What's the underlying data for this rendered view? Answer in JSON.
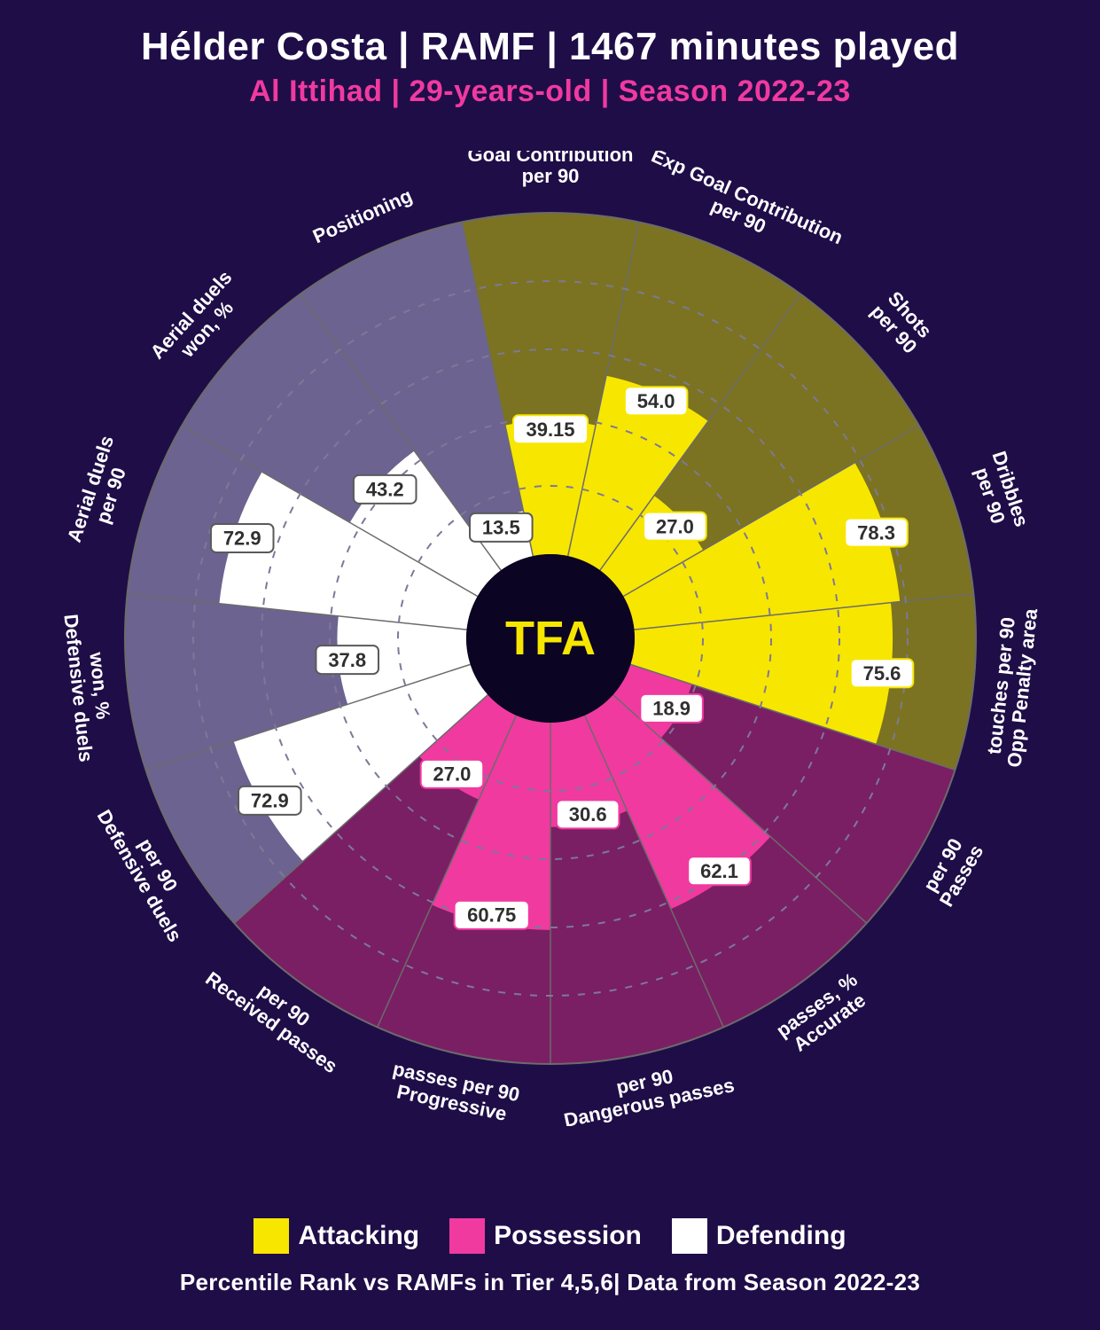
{
  "header": {
    "title": "Hélder Costa | RAMF | 1467 minutes played",
    "subtitle": "Al Ittihad | 29-years-old | Season 2022-23"
  },
  "footnote": "Percentile Rank vs RAMFs in Tier 4,5,6| Data from Season 2022-23",
  "center_logo": "TFA",
  "chart": {
    "type": "polar-bar",
    "background_color": "#1f0d48",
    "outer_radius": 480,
    "inner_radius": 95,
    "max_value": 100,
    "grid_rings": [
      20,
      40,
      60,
      80
    ],
    "grid_color": "#7d7997",
    "grid_dash": "8 10",
    "outer_ring_stroke": "#6b6b6b",
    "spoke_color": "#6b6b6b",
    "spoke_dash": "",
    "value_label_bg": "#ffffff",
    "value_label_font": 22,
    "value_label_radius": 6,
    "category_label_color": "#ffffff",
    "category_label_font": 22,
    "category_label_weight": 700,
    "groups": {
      "attacking": {
        "bar_color": "#f7e600",
        "bg_color": "#7b7321",
        "label_stroke": "#f7e600",
        "label_text": "#2f2f2f"
      },
      "possession": {
        "bar_color": "#f03aa0",
        "bg_color": "#7a1f64",
        "label_stroke": "#f03aa0",
        "label_text": "#2f2f2f"
      },
      "defending": {
        "bar_color": "#ffffff",
        "bg_color": "#6d6390",
        "label_stroke": "#5a5a5a",
        "label_text": "#2f2f2f"
      }
    },
    "categories": [
      {
        "label": [
          "Goal Contribution",
          "per 90"
        ],
        "value": 39.15,
        "value_display": "39.15",
        "group": "attacking"
      },
      {
        "label": [
          "Exp Goal Contribution",
          "per 90"
        ],
        "value": 54.0,
        "value_display": "54.0",
        "group": "attacking"
      },
      {
        "label": [
          "Shots",
          "per 90"
        ],
        "value": 27.0,
        "value_display": "27.0",
        "group": "attacking"
      },
      {
        "label": [
          "Dribbles",
          "per 90"
        ],
        "value": 78.3,
        "value_display": "78.3",
        "group": "attacking"
      },
      {
        "label": [
          "Opp Penalty area",
          "touches per 90"
        ],
        "value": 75.6,
        "value_display": "75.6",
        "group": "attacking"
      },
      {
        "label": [
          "Passes",
          "per 90"
        ],
        "value": 18.9,
        "value_display": "18.9",
        "group": "possession"
      },
      {
        "label": [
          "Accurate",
          "passes, %"
        ],
        "value": 62.1,
        "value_display": "62.1",
        "group": "possession"
      },
      {
        "label": [
          "Dangerous passes",
          "per 90"
        ],
        "value": 30.6,
        "value_display": "30.6",
        "group": "possession"
      },
      {
        "label": [
          "Progressive",
          "passes per 90"
        ],
        "value": 60.75,
        "value_display": "60.75",
        "group": "possession"
      },
      {
        "label": [
          "Received passes",
          "per 90"
        ],
        "value": 27.0,
        "value_display": "27.0",
        "group": "possession"
      },
      {
        "label": [
          "Defensive duels",
          "per 90"
        ],
        "value": 72.9,
        "value_display": "72.9",
        "group": "defending"
      },
      {
        "label": [
          "Defensive duels",
          "won, %"
        ],
        "value": 37.8,
        "value_display": "37.8",
        "group": "defending"
      },
      {
        "label": [
          "Aerial duels",
          "per 90"
        ],
        "value": 72.9,
        "value_display": "72.9",
        "group": "defending"
      },
      {
        "label": [
          "Aerial duels",
          "won, %"
        ],
        "value": 43.2,
        "value_display": "43.2",
        "group": "defending"
      },
      {
        "label": [
          "Positioning"
        ],
        "value": 13.5,
        "value_display": "13.5",
        "group": "defending"
      }
    ]
  },
  "legend": [
    {
      "label": "Attacking",
      "color": "#f7e600"
    },
    {
      "label": "Possession",
      "color": "#f03aa0"
    },
    {
      "label": "Defending",
      "color": "#ffffff"
    }
  ],
  "colors": {
    "title": "#ffffff",
    "subtitle": "#f03aa0",
    "center_circle": "#0b0422",
    "center_text": "#f7e600"
  }
}
